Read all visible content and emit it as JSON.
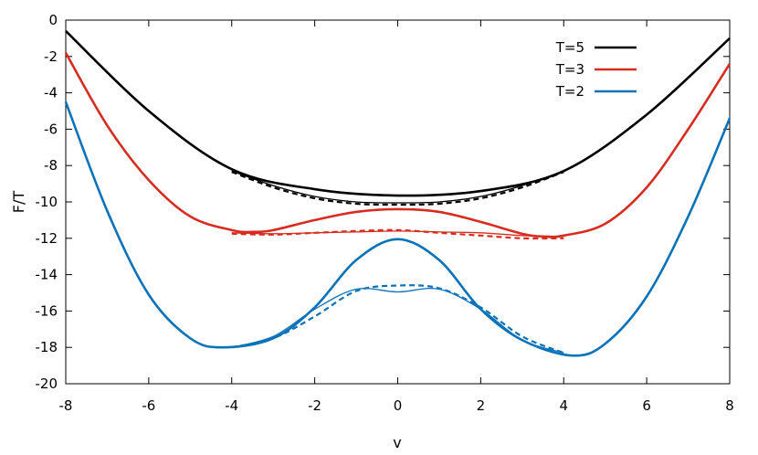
{
  "chart_data": {
    "type": "line",
    "xlabel": "v",
    "ylabel": "F/T",
    "xlim": [
      -8,
      8
    ],
    "ylim": [
      -20,
      0
    ],
    "xticks": [
      -8,
      -6,
      -4,
      -2,
      0,
      2,
      4,
      6,
      8
    ],
    "yticks": [
      0,
      -2,
      -4,
      -6,
      -8,
      -10,
      -12,
      -14,
      -16,
      -18,
      -20
    ],
    "grid": false,
    "legend_position": "top-right",
    "legend": [
      {
        "label": "T=5",
        "color": "#000000"
      },
      {
        "label": "T=3",
        "color": "#d62d20"
      },
      {
        "label": "T=2",
        "color": "#0a72b8"
      }
    ],
    "series": [
      {
        "group": "T=5",
        "style": "thick",
        "color": "#000000",
        "x": [
          -8,
          -6,
          -4,
          -2,
          0,
          2,
          4,
          6,
          8
        ],
        "y": [
          -0.6,
          -5.0,
          -8.2,
          -9.3,
          -9.65,
          -9.4,
          -8.3,
          -5.2,
          -1.0
        ]
      },
      {
        "group": "T=5",
        "style": "thin",
        "color": "#000000",
        "x": [
          -4,
          -3,
          -2,
          -1,
          0,
          1,
          2,
          3,
          4
        ],
        "y": [
          -8.3,
          -9.1,
          -9.7,
          -10.0,
          -10.05,
          -10.0,
          -9.7,
          -9.1,
          -8.3
        ]
      },
      {
        "group": "T=5",
        "style": "dashed",
        "color": "#000000",
        "x": [
          -4,
          -3,
          -2,
          -1,
          0,
          1,
          2,
          3,
          4
        ],
        "y": [
          -8.35,
          -9.2,
          -9.8,
          -10.1,
          -10.15,
          -10.1,
          -9.8,
          -9.2,
          -8.35
        ]
      },
      {
        "group": "T=3",
        "style": "thick",
        "color": "#d62d20",
        "x": [
          -8,
          -7,
          -6,
          -5,
          -4,
          -3.5,
          -3,
          -2,
          -1,
          0,
          1,
          2,
          3,
          3.5,
          4,
          5,
          6,
          7,
          8
        ],
        "y": [
          -1.8,
          -5.8,
          -8.8,
          -10.8,
          -11.55,
          -11.65,
          -11.55,
          -11.0,
          -10.55,
          -10.4,
          -10.55,
          -11.1,
          -11.75,
          -11.9,
          -11.85,
          -11.2,
          -9.2,
          -6.0,
          -2.4
        ]
      },
      {
        "group": "T=3",
        "style": "thin",
        "color": "#d62d20",
        "x": [
          -4,
          -3,
          -2,
          -1,
          0,
          1,
          2,
          3,
          4
        ],
        "y": [
          -11.7,
          -11.75,
          -11.7,
          -11.65,
          -11.6,
          -11.65,
          -11.7,
          -11.85,
          -11.9
        ]
      },
      {
        "group": "T=3",
        "style": "dashed",
        "color": "#d62d20",
        "x": [
          -4,
          -3,
          -2,
          -1,
          0,
          1,
          2,
          3,
          4
        ],
        "y": [
          -11.75,
          -11.8,
          -11.7,
          -11.6,
          -11.55,
          -11.7,
          -11.85,
          -12.0,
          -12.0
        ]
      },
      {
        "group": "T=2",
        "style": "thick",
        "color": "#0a72b8",
        "x": [
          -8,
          -7,
          -6,
          -5,
          -4.2,
          -3,
          -2,
          -1,
          0,
          1,
          2,
          3,
          4.2,
          5,
          6,
          7,
          8
        ],
        "y": [
          -4.5,
          -10.5,
          -15.1,
          -17.5,
          -18.0,
          -17.5,
          -15.8,
          -13.2,
          -12.05,
          -13.2,
          -15.9,
          -17.6,
          -18.45,
          -17.8,
          -15.2,
          -10.8,
          -5.4
        ]
      },
      {
        "group": "T=2",
        "style": "thin",
        "color": "#0a72b8",
        "x": [
          -4,
          -3,
          -2,
          -1,
          0,
          1,
          2,
          3,
          4
        ],
        "y": [
          -18.0,
          -17.4,
          -15.9,
          -14.8,
          -14.95,
          -14.8,
          -15.9,
          -17.6,
          -18.3
        ]
      },
      {
        "group": "T=2",
        "style": "dashed",
        "color": "#0a72b8",
        "x": [
          -4,
          -3,
          -2,
          -1,
          0,
          1,
          2,
          3,
          4
        ],
        "y": [
          -18.0,
          -17.5,
          -16.3,
          -14.9,
          -14.6,
          -14.75,
          -15.8,
          -17.4,
          -18.3
        ]
      }
    ]
  }
}
